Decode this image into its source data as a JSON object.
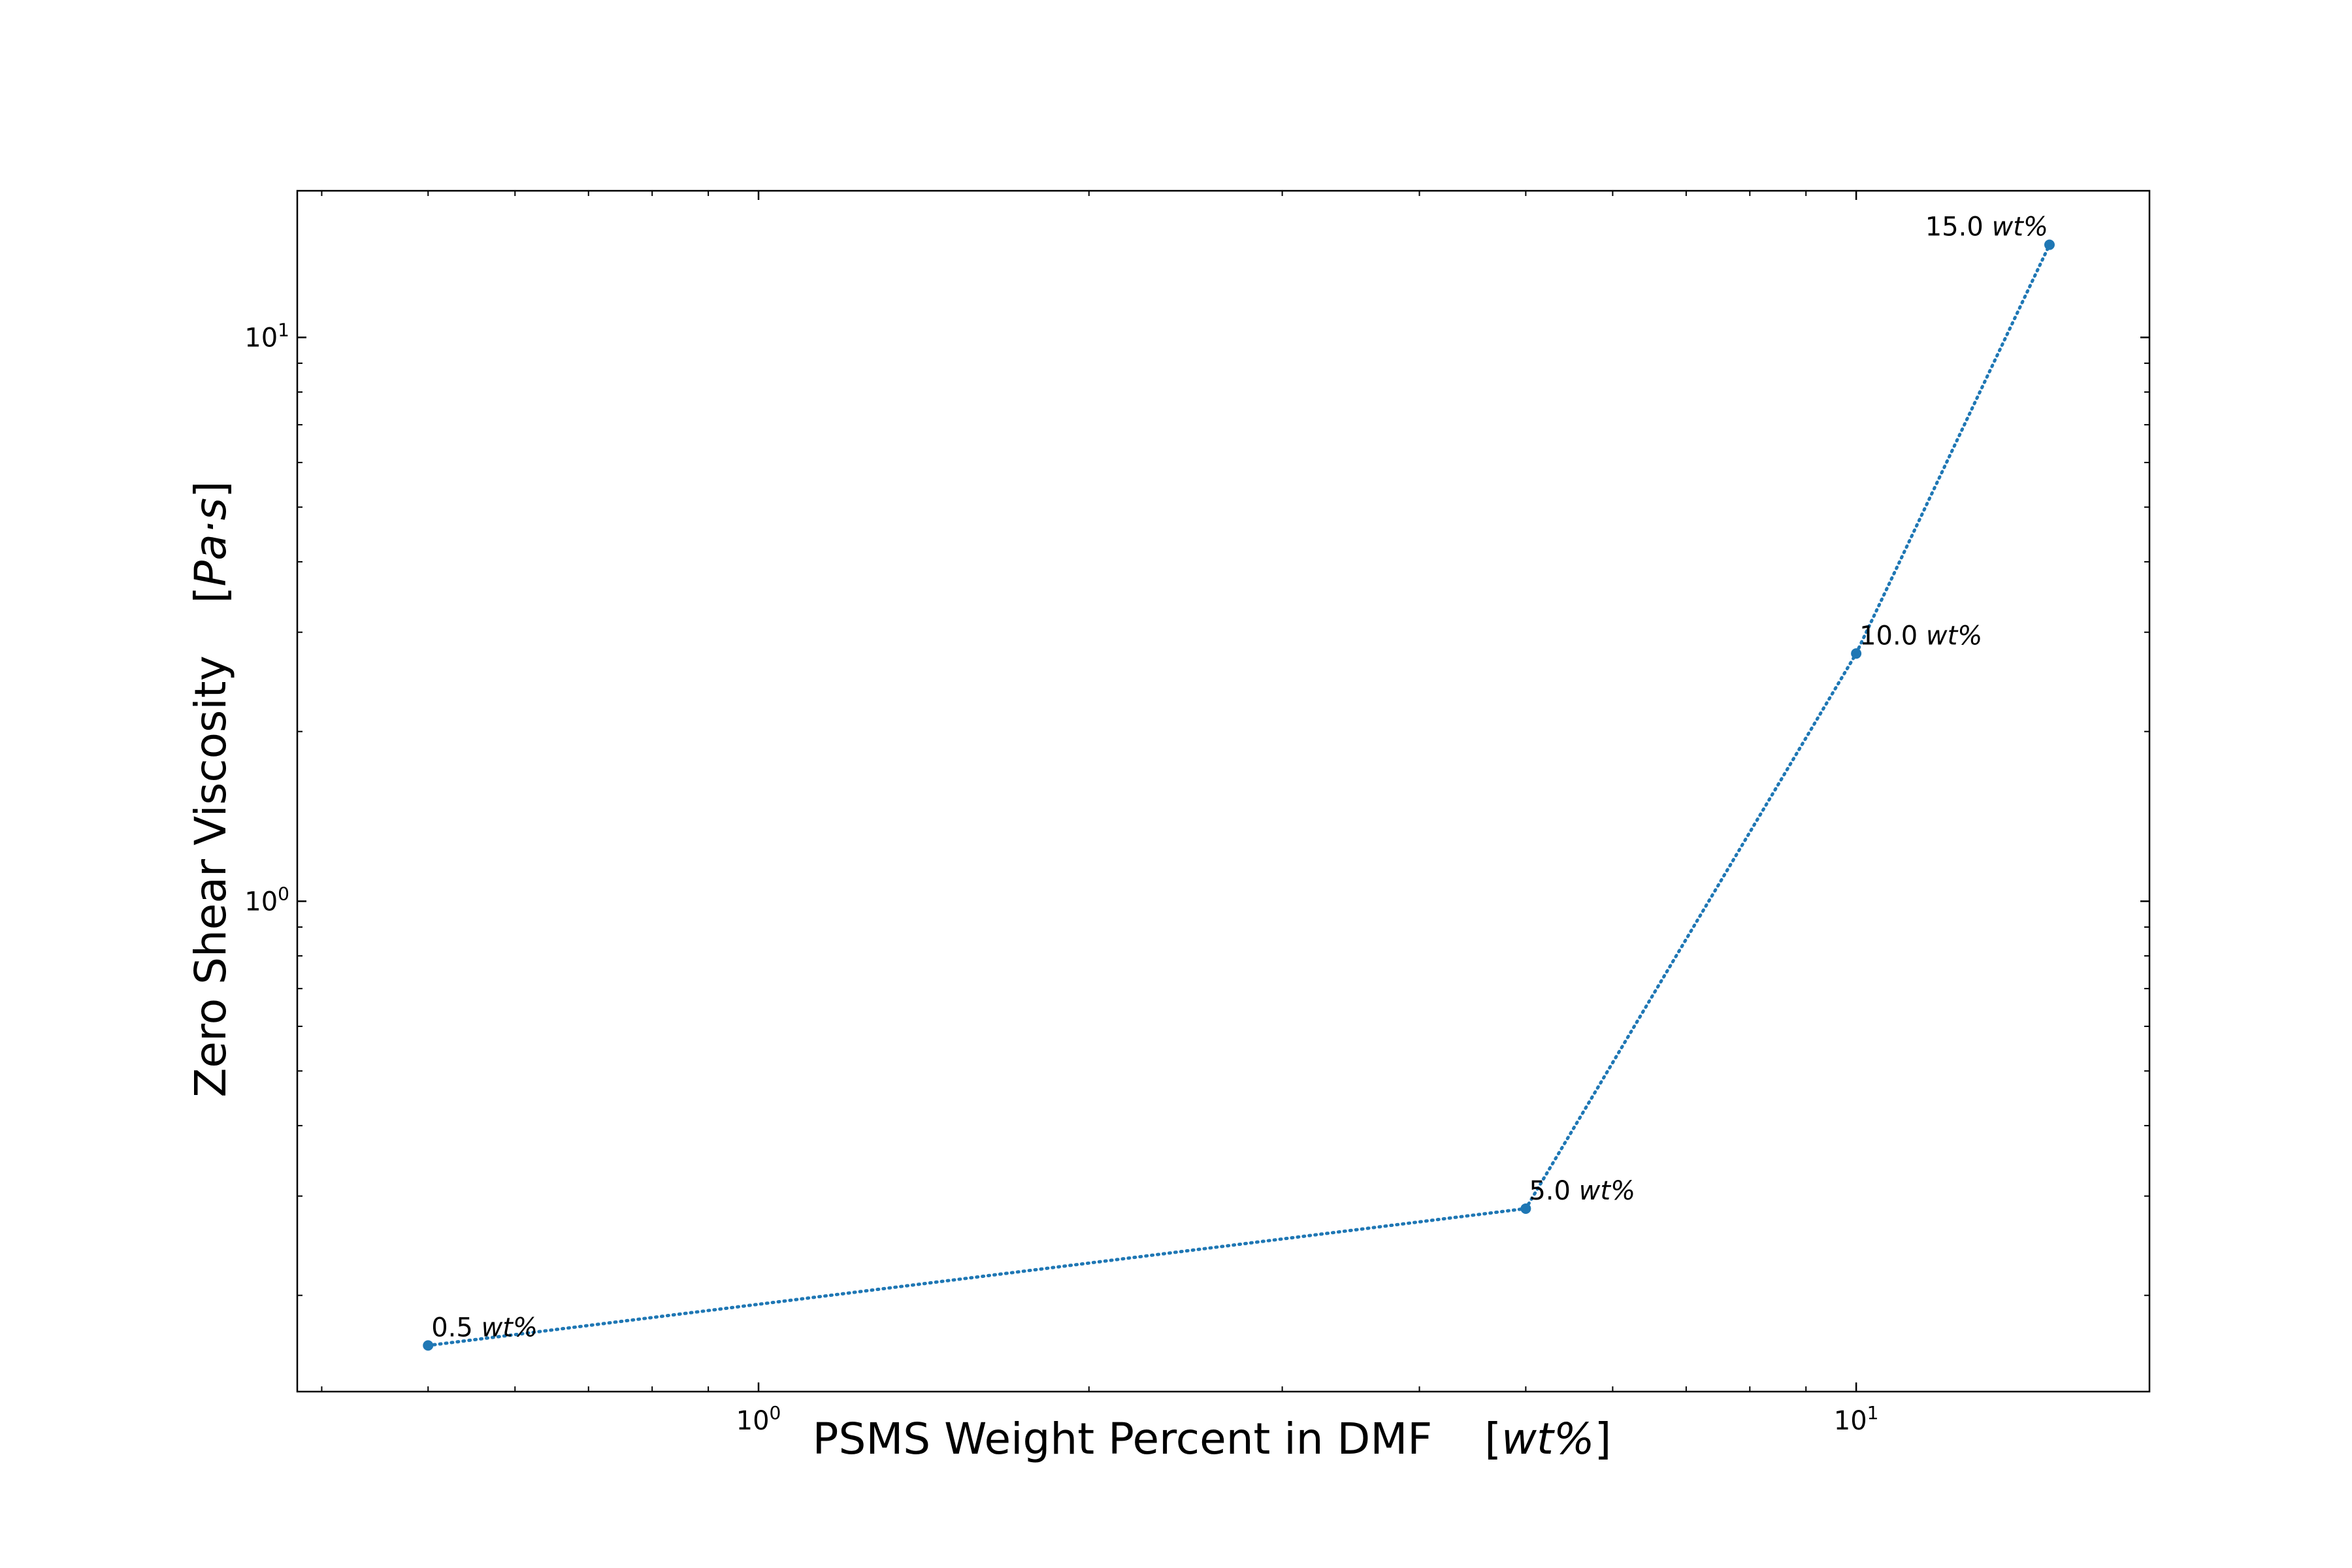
{
  "chart_data": {
    "type": "line",
    "title": "",
    "xlabel_main": "PSMS Weight Percent in DMF",
    "xlabel_unit": "wt%",
    "ylabel_main": "Zero Shear Viscosity",
    "ylabel_unit": "Pa·s",
    "x_scale": "log",
    "y_scale": "log",
    "xlim": [
      0.38,
      18.5
    ],
    "ylim": [
      0.135,
      18.2
    ],
    "x_major_ticks": [
      1,
      10
    ],
    "y_major_ticks": [
      1,
      10
    ],
    "x_tick_labels": [
      {
        "base": "10",
        "exp": "0"
      },
      {
        "base": "10",
        "exp": "1"
      }
    ],
    "y_tick_labels": [
      {
        "base": "10",
        "exp": "0"
      },
      {
        "base": "10",
        "exp": "1"
      }
    ],
    "grid": false,
    "line_style": "dotted",
    "color": "#1f77b4",
    "series": [
      {
        "x": [
          0.5,
          5.0,
          10.0,
          15.0
        ],
        "y": [
          0.163,
          0.285,
          2.75,
          14.6
        ],
        "labels": [
          {
            "num": "0.5",
            "unit": "wt%"
          },
          {
            "num": "5.0",
            "unit": "wt%"
          },
          {
            "num": "10.0",
            "unit": "wt%"
          },
          {
            "num": "15.0",
            "unit": "wt%"
          }
        ]
      }
    ]
  }
}
